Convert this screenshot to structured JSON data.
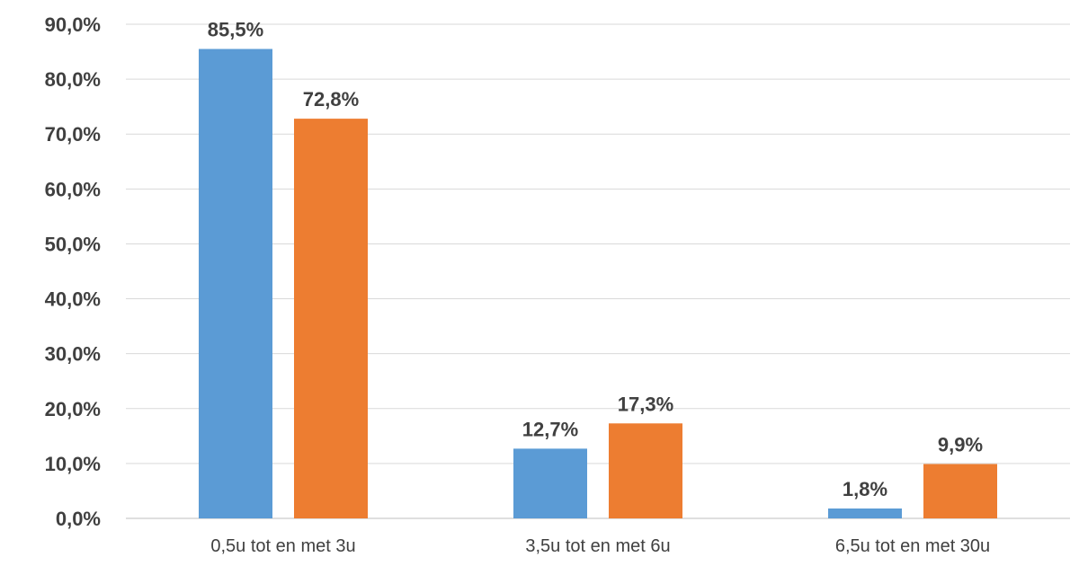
{
  "chart_data": {
    "type": "bar",
    "categories": [
      "0,5u tot en met 3u",
      "3,5u tot en met 6u",
      "6,5u tot en met 30u"
    ],
    "series": [
      {
        "values": [
          85.5,
          12.7,
          1.8
        ],
        "labels": [
          "85,5%",
          "12,7%",
          "1,8%"
        ],
        "color": "#5b9bd5"
      },
      {
        "values": [
          72.8,
          17.3,
          9.9
        ],
        "labels": [
          "72,8%",
          "17,3%",
          "9,9%"
        ],
        "color": "#ed7d31"
      }
    ],
    "ylim": [
      0,
      90
    ],
    "yticks": [
      0,
      10,
      20,
      30,
      40,
      50,
      60,
      70,
      80,
      90
    ],
    "ytick_labels": [
      "0,0%",
      "10,0%",
      "20,0%",
      "30,0%",
      "40,0%",
      "50,0%",
      "60,0%",
      "70,0%",
      "80,0%",
      "90,0%"
    ],
    "grid": true,
    "legend": "none"
  }
}
